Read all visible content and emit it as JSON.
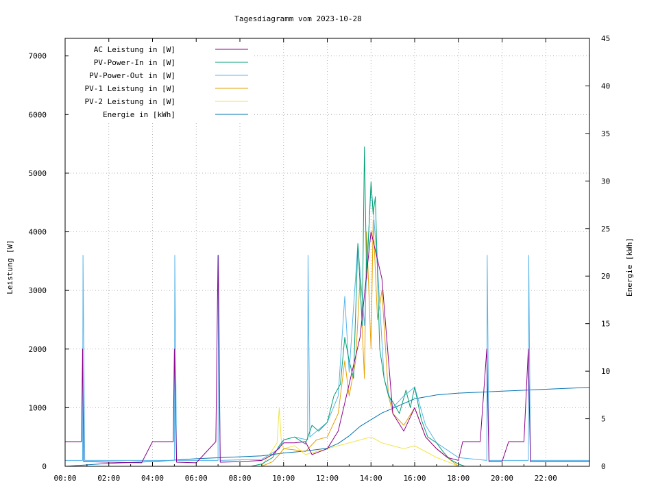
{
  "chart_data": {
    "type": "line",
    "title": "Tagesdiagramm vom 2023-10-28",
    "ylabel": "Leistung [W]",
    "y2label": "Energie [kWh]",
    "xlim": [
      0,
      24
    ],
    "ylim": [
      0,
      7300
    ],
    "y2lim": [
      0,
      45
    ],
    "x_ticks": [
      "00:00",
      "02:00",
      "04:00",
      "06:00",
      "08:00",
      "10:00",
      "12:00",
      "14:00",
      "16:00",
      "18:00",
      "20:00",
      "22:00"
    ],
    "y_ticks": [
      "0",
      "1000",
      "2000",
      "3000",
      "4000",
      "5000",
      "6000",
      "7000"
    ],
    "y2_ticks": [
      "0",
      "5",
      "10",
      "15",
      "20",
      "25",
      "30",
      "35",
      "40",
      "45"
    ],
    "grid": true,
    "legend_position": "top-left",
    "colors": {
      "ac": "#8b008b",
      "pv_in": "#009e73",
      "pv_out": "#56b4e9",
      "pv1": "#e69f00",
      "pv2": "#f0e442",
      "energy": "#0072b2",
      "grid": "#a0a0a0"
    },
    "series": [
      {
        "key": "ac",
        "name": "AC Leistung in [W]",
        "axis": "y",
        "x": [
          0.0,
          0.75,
          0.8,
          0.85,
          1.0,
          2.0,
          3.5,
          4.0,
          4.95,
          5.0,
          5.1,
          6.0,
          6.9,
          7.0,
          7.1,
          8.0,
          9.0,
          9.5,
          10.0,
          10.5,
          11.0,
          11.3,
          12.0,
          12.5,
          13.0,
          13.5,
          14.0,
          14.5,
          15.0,
          15.5,
          16.0,
          16.5,
          17.0,
          17.5,
          18.0,
          18.2,
          19.0,
          19.3,
          19.4,
          20.0,
          20.3,
          21.0,
          21.2,
          21.3,
          22.0,
          23.0,
          24.0
        ],
        "y": [
          420,
          420,
          2000,
          80,
          80,
          70,
          60,
          420,
          420,
          2000,
          70,
          60,
          420,
          3600,
          70,
          80,
          100,
          200,
          400,
          400,
          420,
          200,
          300,
          600,
          1400,
          2200,
          4000,
          3200,
          900,
          600,
          1000,
          500,
          300,
          150,
          100,
          420,
          420,
          2000,
          80,
          80,
          420,
          420,
          2000,
          80,
          80,
          80,
          80
        ]
      },
      {
        "key": "pv_in",
        "name": "PV-Power-In in [W]",
        "axis": "y",
        "x": [
          0.0,
          8.5,
          9.0,
          9.5,
          9.8,
          10.0,
          10.5,
          11.0,
          11.3,
          11.6,
          12.0,
          12.3,
          12.6,
          12.8,
          13.0,
          13.2,
          13.4,
          13.6,
          13.7,
          13.8,
          14.0,
          14.1,
          14.2,
          14.4,
          14.6,
          14.8,
          15.0,
          15.3,
          15.6,
          15.8,
          16.0,
          16.3,
          16.6,
          17.0,
          17.3,
          17.6,
          18.0,
          18.3,
          24.0
        ],
        "y": [
          0,
          0,
          40,
          150,
          350,
          450,
          500,
          380,
          700,
          600,
          750,
          1200,
          1400,
          2200,
          1800,
          1500,
          3800,
          2400,
          5450,
          3200,
          4850,
          4300,
          4600,
          2000,
          1500,
          1200,
          1100,
          900,
          1300,
          1000,
          1350,
          800,
          500,
          400,
          250,
          120,
          40,
          0,
          0
        ]
      },
      {
        "key": "pv_out",
        "name": "PV-Power-Out in [W]",
        "axis": "y",
        "x": [
          0.0,
          0.8,
          0.82,
          0.9,
          4.0,
          5.0,
          5.02,
          5.1,
          7.0,
          7.02,
          7.1,
          9.0,
          9.8,
          10.0,
          10.5,
          11.1,
          11.12,
          11.2,
          12.0,
          12.5,
          12.8,
          13.0,
          13.4,
          13.7,
          13.8,
          14.0,
          14.1,
          14.3,
          14.6,
          15.0,
          15.5,
          16.0,
          16.5,
          17.0,
          18.0,
          19.3,
          19.32,
          19.4,
          21.2,
          21.22,
          21.3,
          24.0
        ],
        "y": [
          100,
          100,
          3600,
          100,
          100,
          100,
          3600,
          100,
          100,
          3600,
          100,
          120,
          300,
          450,
          500,
          450,
          3600,
          500,
          750,
          1200,
          2900,
          1600,
          3800,
          2400,
          3300,
          4800,
          4400,
          3400,
          1500,
          1000,
          1200,
          1350,
          700,
          400,
          150,
          100,
          3600,
          100,
          100,
          3600,
          100,
          100
        ]
      },
      {
        "key": "pv1",
        "name": "PV-1 Leistung in [W]",
        "axis": "y",
        "x": [
          0.0,
          9.0,
          9.5,
          9.8,
          10.0,
          10.5,
          11.0,
          11.5,
          12.0,
          12.5,
          12.8,
          13.0,
          13.3,
          13.5,
          13.7,
          13.8,
          14.0,
          14.1,
          14.3,
          14.5,
          14.8,
          15.0,
          15.5,
          16.0,
          16.5,
          17.0,
          17.5,
          18.0,
          24.0
        ],
        "y": [
          0,
          0,
          80,
          200,
          300,
          280,
          250,
          450,
          500,
          900,
          1800,
          1200,
          1800,
          3200,
          1500,
          4000,
          2000,
          4200,
          2500,
          3000,
          1200,
          900,
          700,
          1000,
          500,
          300,
          150,
          0,
          0
        ]
      },
      {
        "key": "pv2",
        "name": "PV-2 Leistung in [W]",
        "axis": "y",
        "x": [
          0.0,
          9.0,
          9.7,
          9.8,
          9.9,
          10.0,
          10.5,
          11.0,
          11.5,
          12.0,
          12.5,
          13.0,
          13.5,
          14.0,
          14.5,
          15.0,
          15.5,
          16.0,
          16.5,
          17.0,
          17.5,
          18.0,
          24.0
        ],
        "y": [
          0,
          0,
          400,
          1000,
          400,
          300,
          350,
          200,
          250,
          300,
          350,
          400,
          450,
          500,
          400,
          350,
          300,
          350,
          250,
          150,
          80,
          0,
          0
        ]
      },
      {
        "key": "energy",
        "name": "Energie in [kWh]",
        "axis": "y2",
        "x": [
          0.0,
          2.0,
          4.0,
          6.0,
          8.0,
          9.0,
          10.0,
          11.0,
          12.0,
          12.5,
          13.0,
          13.5,
          14.0,
          14.5,
          15.0,
          15.5,
          16.0,
          16.5,
          17.0,
          18.0,
          19.0,
          20.0,
          21.0,
          22.0,
          23.0,
          24.0
        ],
        "y": [
          0.0,
          0.3,
          0.5,
          0.8,
          1.0,
          1.1,
          1.4,
          1.6,
          1.9,
          2.4,
          3.2,
          4.2,
          4.9,
          5.6,
          6.1,
          6.6,
          7.1,
          7.3,
          7.5,
          7.7,
          7.8,
          7.9,
          8.0,
          8.1,
          8.2,
          8.3
        ]
      }
    ]
  }
}
